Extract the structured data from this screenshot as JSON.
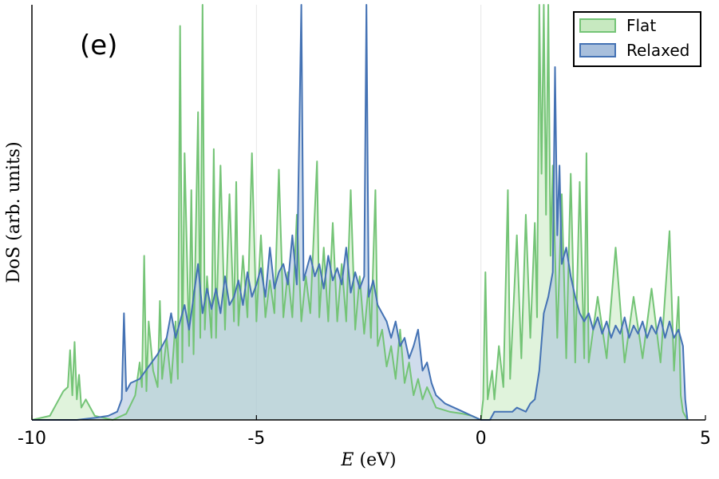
{
  "chart_data": {
    "type": "area",
    "panel_label": "(e)",
    "xlabel_var": "E",
    "xlabel_unit": "(eV)",
    "ylabel": "DoS (arb. units)",
    "xlim": [
      -10,
      5
    ],
    "ylim": [
      0,
      1
    ],
    "xticks": [
      {
        "value": -10,
        "label": "-10"
      },
      {
        "value": -5,
        "label": "-5"
      },
      {
        "value": 0,
        "label": "0"
      },
      {
        "value": 5,
        "label": "5"
      }
    ],
    "grid": true,
    "legend_position": "top-right",
    "series": [
      {
        "name": "Flat",
        "color": "#74c476",
        "fill": "#c7e9c0",
        "points": [
          [
            -10.0,
            0.0
          ],
          [
            -9.6,
            0.01
          ],
          [
            -9.45,
            0.04
          ],
          [
            -9.3,
            0.07
          ],
          [
            -9.2,
            0.08
          ],
          [
            -9.15,
            0.17
          ],
          [
            -9.1,
            0.06
          ],
          [
            -9.05,
            0.19
          ],
          [
            -9.0,
            0.05
          ],
          [
            -8.95,
            0.11
          ],
          [
            -8.9,
            0.03
          ],
          [
            -8.8,
            0.05
          ],
          [
            -8.6,
            0.01
          ],
          [
            -8.2,
            0.0
          ],
          [
            -7.9,
            0.015
          ],
          [
            -7.7,
            0.06
          ],
          [
            -7.6,
            0.14
          ],
          [
            -7.55,
            0.08
          ],
          [
            -7.5,
            0.4
          ],
          [
            -7.45,
            0.07
          ],
          [
            -7.4,
            0.24
          ],
          [
            -7.3,
            0.12
          ],
          [
            -7.2,
            0.08
          ],
          [
            -7.15,
            0.29
          ],
          [
            -7.1,
            0.1
          ],
          [
            -7.0,
            0.2
          ],
          [
            -6.9,
            0.09
          ],
          [
            -6.8,
            0.24
          ],
          [
            -6.75,
            0.1
          ],
          [
            -6.7,
            0.96
          ],
          [
            -6.65,
            0.14
          ],
          [
            -6.6,
            0.65
          ],
          [
            -6.5,
            0.18
          ],
          [
            -6.45,
            0.56
          ],
          [
            -6.4,
            0.16
          ],
          [
            -6.3,
            0.75
          ],
          [
            -6.25,
            0.2
          ],
          [
            -6.2,
            1.02
          ],
          [
            -6.15,
            0.22
          ],
          [
            -6.1,
            0.35
          ],
          [
            -6.0,
            0.2
          ],
          [
            -5.95,
            0.66
          ],
          [
            -5.9,
            0.2
          ],
          [
            -5.8,
            0.62
          ],
          [
            -5.7,
            0.22
          ],
          [
            -5.6,
            0.55
          ],
          [
            -5.5,
            0.24
          ],
          [
            -5.45,
            0.58
          ],
          [
            -5.4,
            0.23
          ],
          [
            -5.3,
            0.4
          ],
          [
            -5.2,
            0.25
          ],
          [
            -5.1,
            0.65
          ],
          [
            -5.0,
            0.24
          ],
          [
            -4.9,
            0.45
          ],
          [
            -4.8,
            0.25
          ],
          [
            -4.7,
            0.34
          ],
          [
            -4.6,
            0.26
          ],
          [
            -4.5,
            0.61
          ],
          [
            -4.4,
            0.25
          ],
          [
            -4.3,
            0.36
          ],
          [
            -4.2,
            0.25
          ],
          [
            -4.1,
            0.5
          ],
          [
            -4.0,
            0.24
          ],
          [
            -3.9,
            0.35
          ],
          [
            -3.8,
            0.26
          ],
          [
            -3.65,
            0.63
          ],
          [
            -3.6,
            0.25
          ],
          [
            -3.5,
            0.42
          ],
          [
            -3.4,
            0.24
          ],
          [
            -3.3,
            0.48
          ],
          [
            -3.2,
            0.24
          ],
          [
            -3.1,
            0.38
          ],
          [
            -3.0,
            0.24
          ],
          [
            -2.9,
            0.56
          ],
          [
            -2.8,
            0.22
          ],
          [
            -2.7,
            0.35
          ],
          [
            -2.6,
            0.21
          ],
          [
            -2.5,
            0.33
          ],
          [
            -2.45,
            0.2
          ],
          [
            -2.35,
            0.56
          ],
          [
            -2.3,
            0.18
          ],
          [
            -2.2,
            0.22
          ],
          [
            -2.1,
            0.13
          ],
          [
            -2.0,
            0.18
          ],
          [
            -1.9,
            0.1
          ],
          [
            -1.8,
            0.22
          ],
          [
            -1.7,
            0.09
          ],
          [
            -1.6,
            0.14
          ],
          [
            -1.5,
            0.06
          ],
          [
            -1.4,
            0.1
          ],
          [
            -1.3,
            0.05
          ],
          [
            -1.2,
            0.08
          ],
          [
            -1.0,
            0.03
          ],
          [
            -0.7,
            0.02
          ],
          [
            -0.4,
            0.015
          ],
          [
            -0.2,
            0.01
          ],
          [
            0.0,
            0.0
          ],
          [
            0.05,
            0.05
          ],
          [
            0.1,
            0.36
          ],
          [
            0.15,
            0.05
          ],
          [
            0.25,
            0.12
          ],
          [
            0.3,
            0.05
          ],
          [
            0.4,
            0.18
          ],
          [
            0.5,
            0.08
          ],
          [
            0.6,
            0.56
          ],
          [
            0.65,
            0.1
          ],
          [
            0.8,
            0.45
          ],
          [
            0.9,
            0.15
          ],
          [
            1.0,
            0.5
          ],
          [
            1.1,
            0.2
          ],
          [
            1.2,
            0.48
          ],
          [
            1.25,
            0.25
          ],
          [
            1.3,
            1.03
          ],
          [
            1.35,
            0.6
          ],
          [
            1.4,
            1.03
          ],
          [
            1.45,
            0.5
          ],
          [
            1.5,
            1.02
          ],
          [
            1.55,
            0.4
          ],
          [
            1.6,
            0.62
          ],
          [
            1.7,
            0.2
          ],
          [
            1.8,
            0.55
          ],
          [
            1.9,
            0.15
          ],
          [
            2.0,
            0.6
          ],
          [
            2.1,
            0.14
          ],
          [
            2.2,
            0.58
          ],
          [
            2.3,
            0.15
          ],
          [
            2.35,
            0.65
          ],
          [
            2.4,
            0.14
          ],
          [
            2.6,
            0.3
          ],
          [
            2.8,
            0.15
          ],
          [
            3.0,
            0.42
          ],
          [
            3.2,
            0.14
          ],
          [
            3.4,
            0.3
          ],
          [
            3.6,
            0.15
          ],
          [
            3.8,
            0.32
          ],
          [
            4.0,
            0.14
          ],
          [
            4.2,
            0.46
          ],
          [
            4.3,
            0.12
          ],
          [
            4.4,
            0.3
          ],
          [
            4.45,
            0.06
          ],
          [
            4.5,
            0.02
          ],
          [
            4.6,
            0.0
          ]
        ]
      },
      {
        "name": "Relaxed",
        "color": "#4472b4",
        "fill": "#a8bfdc",
        "points": [
          [
            -10.0,
            0.0
          ],
          [
            -9.0,
            0.0
          ],
          [
            -8.6,
            0.005
          ],
          [
            -8.3,
            0.01
          ],
          [
            -8.1,
            0.02
          ],
          [
            -8.0,
            0.05
          ],
          [
            -7.95,
            0.26
          ],
          [
            -7.9,
            0.07
          ],
          [
            -7.8,
            0.09
          ],
          [
            -7.6,
            0.1
          ],
          [
            -7.4,
            0.13
          ],
          [
            -7.2,
            0.16
          ],
          [
            -7.0,
            0.2
          ],
          [
            -6.9,
            0.26
          ],
          [
            -6.8,
            0.2
          ],
          [
            -6.7,
            0.24
          ],
          [
            -6.6,
            0.28
          ],
          [
            -6.5,
            0.22
          ],
          [
            -6.4,
            0.3
          ],
          [
            -6.3,
            0.38
          ],
          [
            -6.2,
            0.26
          ],
          [
            -6.1,
            0.32
          ],
          [
            -6.0,
            0.27
          ],
          [
            -5.9,
            0.32
          ],
          [
            -5.8,
            0.26
          ],
          [
            -5.7,
            0.35
          ],
          [
            -5.6,
            0.28
          ],
          [
            -5.5,
            0.3
          ],
          [
            -5.4,
            0.34
          ],
          [
            -5.3,
            0.28
          ],
          [
            -5.2,
            0.36
          ],
          [
            -5.1,
            0.3
          ],
          [
            -5.0,
            0.33
          ],
          [
            -4.9,
            0.37
          ],
          [
            -4.8,
            0.3
          ],
          [
            -4.7,
            0.42
          ],
          [
            -4.6,
            0.32
          ],
          [
            -4.5,
            0.36
          ],
          [
            -4.4,
            0.38
          ],
          [
            -4.3,
            0.33
          ],
          [
            -4.2,
            0.45
          ],
          [
            -4.1,
            0.33
          ],
          [
            -4.0,
            1.02
          ],
          [
            -3.95,
            0.34
          ],
          [
            -3.8,
            0.4
          ],
          [
            -3.7,
            0.35
          ],
          [
            -3.6,
            0.38
          ],
          [
            -3.5,
            0.32
          ],
          [
            -3.4,
            0.4
          ],
          [
            -3.3,
            0.34
          ],
          [
            -3.2,
            0.37
          ],
          [
            -3.1,
            0.33
          ],
          [
            -3.0,
            0.42
          ],
          [
            -2.9,
            0.31
          ],
          [
            -2.8,
            0.36
          ],
          [
            -2.7,
            0.32
          ],
          [
            -2.6,
            0.35
          ],
          [
            -2.55,
            1.02
          ],
          [
            -2.5,
            0.3
          ],
          [
            -2.4,
            0.34
          ],
          [
            -2.3,
            0.28
          ],
          [
            -2.2,
            0.26
          ],
          [
            -2.1,
            0.24
          ],
          [
            -2.0,
            0.2
          ],
          [
            -1.9,
            0.24
          ],
          [
            -1.8,
            0.18
          ],
          [
            -1.7,
            0.2
          ],
          [
            -1.6,
            0.15
          ],
          [
            -1.5,
            0.18
          ],
          [
            -1.4,
            0.22
          ],
          [
            -1.3,
            0.12
          ],
          [
            -1.2,
            0.14
          ],
          [
            -1.1,
            0.09
          ],
          [
            -1.0,
            0.06
          ],
          [
            -0.9,
            0.05
          ],
          [
            -0.8,
            0.04
          ],
          [
            -0.6,
            0.03
          ],
          [
            -0.4,
            0.02
          ],
          [
            -0.2,
            0.01
          ],
          [
            0.0,
            0.0
          ],
          [
            0.2,
            0.0
          ],
          [
            0.3,
            0.02
          ],
          [
            0.5,
            0.02
          ],
          [
            0.7,
            0.02
          ],
          [
            0.8,
            0.03
          ],
          [
            0.9,
            0.025
          ],
          [
            1.0,
            0.02
          ],
          [
            1.1,
            0.04
          ],
          [
            1.2,
            0.05
          ],
          [
            1.3,
            0.12
          ],
          [
            1.4,
            0.26
          ],
          [
            1.5,
            0.3
          ],
          [
            1.6,
            0.36
          ],
          [
            1.65,
            0.86
          ],
          [
            1.7,
            0.45
          ],
          [
            1.75,
            0.62
          ],
          [
            1.8,
            0.38
          ],
          [
            1.9,
            0.42
          ],
          [
            2.0,
            0.35
          ],
          [
            2.1,
            0.3
          ],
          [
            2.2,
            0.26
          ],
          [
            2.3,
            0.24
          ],
          [
            2.4,
            0.26
          ],
          [
            2.5,
            0.22
          ],
          [
            2.6,
            0.25
          ],
          [
            2.7,
            0.21
          ],
          [
            2.8,
            0.24
          ],
          [
            2.9,
            0.2
          ],
          [
            3.0,
            0.23
          ],
          [
            3.1,
            0.21
          ],
          [
            3.2,
            0.25
          ],
          [
            3.3,
            0.2
          ],
          [
            3.4,
            0.23
          ],
          [
            3.5,
            0.21
          ],
          [
            3.6,
            0.24
          ],
          [
            3.7,
            0.2
          ],
          [
            3.8,
            0.23
          ],
          [
            3.9,
            0.21
          ],
          [
            4.0,
            0.25
          ],
          [
            4.1,
            0.2
          ],
          [
            4.2,
            0.24
          ],
          [
            4.3,
            0.2
          ],
          [
            4.4,
            0.22
          ],
          [
            4.5,
            0.18
          ],
          [
            4.55,
            0.05
          ],
          [
            4.6,
            0.0
          ]
        ]
      }
    ]
  }
}
